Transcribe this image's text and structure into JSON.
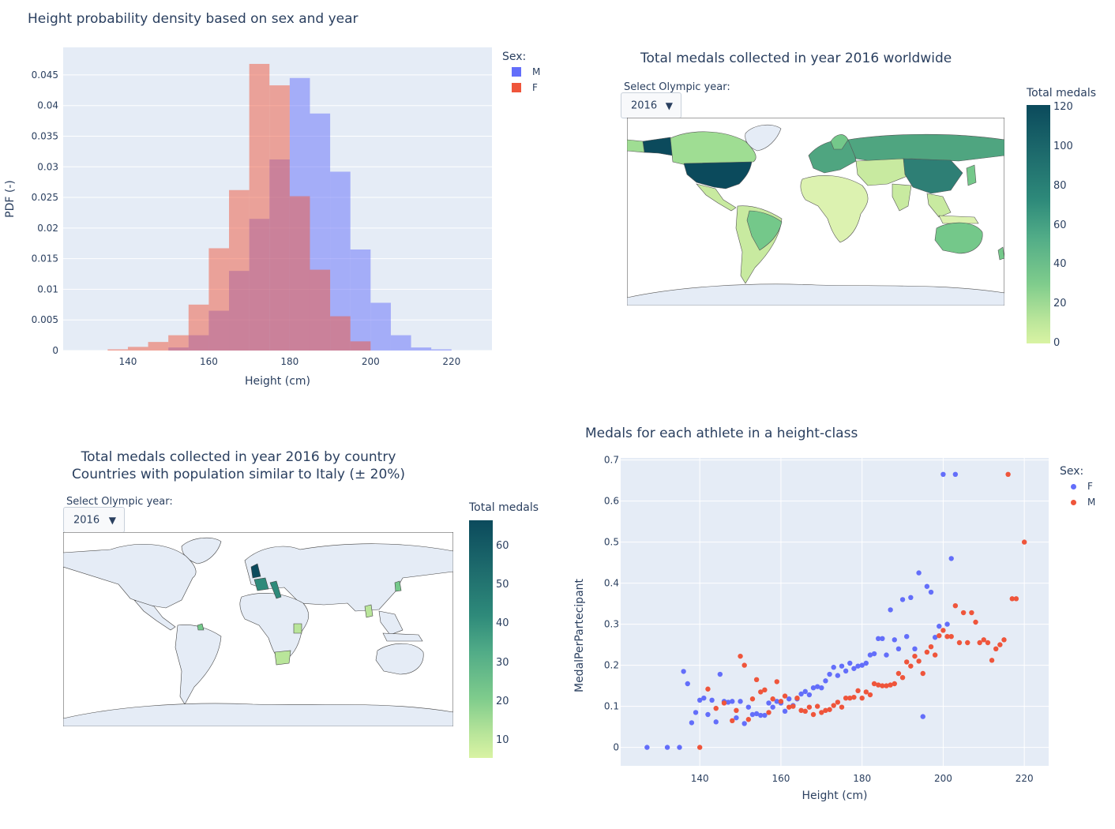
{
  "histogram": {
    "title": "Height probability density based on sex and year",
    "xlabel": "Height (cm)",
    "ylabel": "PDF (-)",
    "legend_title": "Sex:",
    "legend": [
      {
        "name": "M",
        "color": "#636efa"
      },
      {
        "name": "F",
        "color": "#ef553b"
      }
    ],
    "xticks": [
      "140",
      "160",
      "180",
      "200",
      "220"
    ],
    "yticks": [
      "0",
      "0.005",
      "0.01",
      "0.015",
      "0.02",
      "0.025",
      "0.03",
      "0.035",
      "0.04",
      "0.045"
    ]
  },
  "worldmap": {
    "title": "Total medals collected in year 2016 worldwide",
    "dropdown_label": "Select Olympic year:",
    "dropdown_value": "2016",
    "colorbar_title": "Total medals",
    "colorbar_ticks": [
      "120",
      "100",
      "80",
      "60",
      "40",
      "20",
      "0"
    ]
  },
  "italymap": {
    "title_line1": "Total medals collected in year 2016 by country",
    "title_line2": "Countries with population similar to Italy (± 20%)",
    "dropdown_label": "Select Olympic year:",
    "dropdown_value": "2016",
    "colorbar_title": "Total medals",
    "colorbar_ticks": [
      "60",
      "50",
      "40",
      "30",
      "20",
      "10"
    ]
  },
  "scatter": {
    "title": "Medals for each athlete in a height-class",
    "xlabel": "Height (cm)",
    "ylabel": "MedalPerPartecipant",
    "legend_title": "Sex:",
    "legend": [
      {
        "name": "F",
        "color": "#636efa"
      },
      {
        "name": "M",
        "color": "#ef553b"
      }
    ],
    "xticks": [
      "140",
      "160",
      "180",
      "200",
      "220"
    ],
    "yticks": [
      "0",
      "0.1",
      "0.2",
      "0.3",
      "0.4",
      "0.5",
      "0.6",
      "0.7"
    ]
  },
  "chart_data": [
    {
      "type": "bar",
      "title": "Height probability density based on sex and year",
      "xlabel": "Height (cm)",
      "ylabel": "PDF (-)",
      "xlim": [
        124,
        230
      ],
      "ylim": [
        0,
        0.0495
      ],
      "bin_width": 5,
      "series": [
        {
          "name": "M",
          "color": "#636efa",
          "bins": [
            [
              150,
              0.0005
            ],
            [
              155,
              0.0025
            ],
            [
              160,
              0.0065
            ],
            [
              165,
              0.013
            ],
            [
              170,
              0.0215
            ],
            [
              175,
              0.0312
            ],
            [
              180,
              0.0445
            ],
            [
              185,
              0.0387
            ],
            [
              190,
              0.0292
            ],
            [
              195,
              0.0165
            ],
            [
              200,
              0.0078
            ],
            [
              205,
              0.0025
            ],
            [
              210,
              0.0005
            ],
            [
              215,
              0.0002
            ]
          ]
        },
        {
          "name": "F",
          "color": "#ef553b",
          "bins": [
            [
              135,
              0.0002
            ],
            [
              140,
              0.0006
            ],
            [
              145,
              0.0014
            ],
            [
              150,
              0.0025
            ],
            [
              155,
              0.0075
            ],
            [
              160,
              0.0167
            ],
            [
              165,
              0.0262
            ],
            [
              170,
              0.0468
            ],
            [
              175,
              0.0433
            ],
            [
              180,
              0.0252
            ],
            [
              185,
              0.0132
            ],
            [
              190,
              0.0056
            ],
            [
              195,
              0.0015
            ]
          ]
        }
      ]
    },
    {
      "type": "scatter",
      "title": "Medals for each athlete in a height-class",
      "xlabel": "Height (cm)",
      "ylabel": "MedalPerPartecipant",
      "xlim": [
        120.5,
        226
      ],
      "ylim": [
        -0.045,
        0.705
      ],
      "series": [
        {
          "name": "F",
          "color": "#636efa",
          "points": [
            [
              127,
              0
            ],
            [
              132,
              0
            ],
            [
              135,
              0
            ],
            [
              136,
              0.185
            ],
            [
              137,
              0.155
            ],
            [
              138,
              0.06
            ],
            [
              139,
              0.085
            ],
            [
              140,
              0.115
            ],
            [
              141,
              0.12
            ],
            [
              142,
              0.08
            ],
            [
              143,
              0.115
            ],
            [
              144,
              0.062
            ],
            [
              145,
              0.178
            ],
            [
              146,
              0.112
            ],
            [
              147,
              0.11
            ],
            [
              148,
              0.112
            ],
            [
              149,
              0.072
            ],
            [
              150,
              0.112
            ],
            [
              151,
              0.058
            ],
            [
              152,
              0.098
            ],
            [
              153,
              0.08
            ],
            [
              154,
              0.082
            ],
            [
              155,
              0.078
            ],
            [
              156,
              0.078
            ],
            [
              157,
              0.108
            ],
            [
              158,
              0.098
            ],
            [
              159,
              0.112
            ],
            [
              160,
              0.108
            ],
            [
              161,
              0.088
            ],
            [
              162,
              0.118
            ],
            [
              163,
              0.102
            ],
            [
              164,
              0.118
            ],
            [
              165,
              0.13
            ],
            [
              166,
              0.136
            ],
            [
              167,
              0.128
            ],
            [
              168,
              0.145
            ],
            [
              169,
              0.148
            ],
            [
              170,
              0.145
            ],
            [
              171,
              0.162
            ],
            [
              172,
              0.178
            ],
            [
              173,
              0.195
            ],
            [
              174,
              0.175
            ],
            [
              175,
              0.198
            ],
            [
              176,
              0.186
            ],
            [
              177,
              0.205
            ],
            [
              178,
              0.192
            ],
            [
              179,
              0.198
            ],
            [
              180,
              0.2
            ],
            [
              181,
              0.205
            ],
            [
              182,
              0.225
            ],
            [
              183,
              0.228
            ],
            [
              184,
              0.265
            ],
            [
              185,
              0.265
            ],
            [
              186,
              0.225
            ],
            [
              187,
              0.335
            ],
            [
              188,
              0.262
            ],
            [
              189,
              0.24
            ],
            [
              190,
              0.36
            ],
            [
              191,
              0.27
            ],
            [
              192,
              0.365
            ],
            [
              193,
              0.24
            ],
            [
              194,
              0.425
            ],
            [
              195,
              0.075
            ],
            [
              196,
              0.392
            ],
            [
              197,
              0.378
            ],
            [
              198,
              0.268
            ],
            [
              199,
              0.295
            ],
            [
              200,
              0.665
            ],
            [
              201,
              0.3
            ],
            [
              202,
              0.46
            ],
            [
              203,
              0.665
            ]
          ]
        },
        {
          "name": "M",
          "color": "#ef553b",
          "points": [
            [
              140,
              0
            ],
            [
              142,
              0.142
            ],
            [
              144,
              0.095
            ],
            [
              146,
              0.108
            ],
            [
              148,
              0.065
            ],
            [
              149,
              0.09
            ],
            [
              150,
              0.222
            ],
            [
              151,
              0.2
            ],
            [
              152,
              0.068
            ],
            [
              153,
              0.118
            ],
            [
              154,
              0.165
            ],
            [
              155,
              0.135
            ],
            [
              156,
              0.14
            ],
            [
              157,
              0.085
            ],
            [
              158,
              0.118
            ],
            [
              159,
              0.16
            ],
            [
              160,
              0.112
            ],
            [
              161,
              0.125
            ],
            [
              162,
              0.098
            ],
            [
              163,
              0.1
            ],
            [
              164,
              0.12
            ],
            [
              165,
              0.09
            ],
            [
              166,
              0.088
            ],
            [
              167,
              0.098
            ],
            [
              168,
              0.08
            ],
            [
              169,
              0.1
            ],
            [
              170,
              0.085
            ],
            [
              171,
              0.09
            ],
            [
              172,
              0.092
            ],
            [
              173,
              0.102
            ],
            [
              174,
              0.11
            ],
            [
              175,
              0.098
            ],
            [
              176,
              0.12
            ],
            [
              177,
              0.12
            ],
            [
              178,
              0.122
            ],
            [
              179,
              0.138
            ],
            [
              180,
              0.12
            ],
            [
              181,
              0.135
            ],
            [
              182,
              0.128
            ],
            [
              183,
              0.155
            ],
            [
              184,
              0.152
            ],
            [
              185,
              0.15
            ],
            [
              186,
              0.15
            ],
            [
              187,
              0.152
            ],
            [
              188,
              0.155
            ],
            [
              189,
              0.18
            ],
            [
              190,
              0.17
            ],
            [
              191,
              0.208
            ],
            [
              192,
              0.198
            ],
            [
              193,
              0.222
            ],
            [
              194,
              0.21
            ],
            [
              195,
              0.18
            ],
            [
              196,
              0.232
            ],
            [
              197,
              0.245
            ],
            [
              198,
              0.225
            ],
            [
              199,
              0.272
            ],
            [
              200,
              0.285
            ],
            [
              201,
              0.27
            ],
            [
              202,
              0.27
            ],
            [
              203,
              0.345
            ],
            [
              204,
              0.255
            ],
            [
              205,
              0.328
            ],
            [
              206,
              0.255
            ],
            [
              207,
              0.328
            ],
            [
              208,
              0.305
            ],
            [
              209,
              0.255
            ],
            [
              210,
              0.262
            ],
            [
              211,
              0.255
            ],
            [
              212,
              0.212
            ],
            [
              213,
              0.24
            ],
            [
              214,
              0.25
            ],
            [
              215,
              0.262
            ],
            [
              216,
              0.665
            ],
            [
              217,
              0.362
            ],
            [
              218,
              0.362
            ],
            [
              220,
              0.5
            ]
          ]
        }
      ]
    }
  ]
}
